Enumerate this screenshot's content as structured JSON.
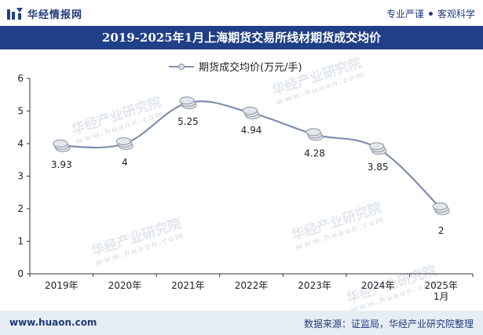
{
  "header": {
    "brand_name": "华经情报网",
    "slogan_left": "专业严谨",
    "slogan_right": "客观科学"
  },
  "title": "2019-2025年1月上海期货交易所线材期货成交均价",
  "watermark": {
    "text": "华经产业研究院",
    "url": "www.huaon.com"
  },
  "chart_data": {
    "type": "line",
    "title": "2019-2025年1月上海期货交易所线材期货成交均价",
    "legend": "期货成交均价(万元/手)",
    "categories": [
      "2019年",
      "2020年",
      "2021年",
      "2022年",
      "2023年",
      "2024年",
      "2025年\n1月"
    ],
    "series": [
      {
        "name": "期货成交均价(万元/手)",
        "values": [
          3.93,
          4,
          5.25,
          4.94,
          4.28,
          3.85,
          2
        ]
      }
    ],
    "value_labels": [
      "3.93",
      "4",
      "5.25",
      "4.94",
      "4.28",
      "3.85",
      "2"
    ],
    "ylim": [
      0,
      6
    ],
    "yticks": [
      "0",
      "1",
      "2",
      "3",
      "4",
      "5",
      "6"
    ],
    "line_color": "#7f8fb0"
  },
  "footer": {
    "url": "www.huaon.com",
    "source": "数据来源：证监局，华经产业研究院整理"
  }
}
